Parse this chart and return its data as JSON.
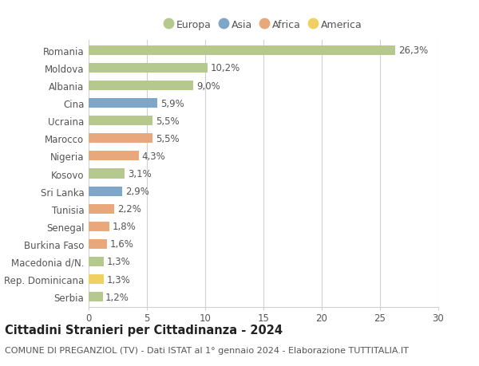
{
  "categories": [
    "Romania",
    "Moldova",
    "Albania",
    "Cina",
    "Ucraina",
    "Marocco",
    "Nigeria",
    "Kosovo",
    "Sri Lanka",
    "Tunisia",
    "Senegal",
    "Burkina Faso",
    "Macedonia d/N.",
    "Rep. Dominicana",
    "Serbia"
  ],
  "values": [
    26.3,
    10.2,
    9.0,
    5.9,
    5.5,
    5.5,
    4.3,
    3.1,
    2.9,
    2.2,
    1.8,
    1.6,
    1.3,
    1.3,
    1.2
  ],
  "labels": [
    "26,3%",
    "10,2%",
    "9,0%",
    "5,9%",
    "5,5%",
    "5,5%",
    "4,3%",
    "3,1%",
    "2,9%",
    "2,2%",
    "1,8%",
    "1,6%",
    "1,3%",
    "1,3%",
    "1,2%"
  ],
  "continents": [
    "Europa",
    "Europa",
    "Europa",
    "Asia",
    "Europa",
    "Africa",
    "Africa",
    "Europa",
    "Asia",
    "Africa",
    "Africa",
    "Africa",
    "Europa",
    "America",
    "Europa"
  ],
  "continent_colors": {
    "Europa": "#b5c98e",
    "Asia": "#7ea6c9",
    "Africa": "#e8a87c",
    "America": "#f0d060"
  },
  "legend_items": [
    "Europa",
    "Asia",
    "Africa",
    "America"
  ],
  "legend_colors": [
    "#b5c98e",
    "#7ea6c9",
    "#e8a87c",
    "#f0d060"
  ],
  "xlim": [
    0,
    30
  ],
  "xticks": [
    0,
    5,
    10,
    15,
    20,
    25,
    30
  ],
  "title": "Cittadini Stranieri per Cittadinanza - 2024",
  "subtitle": "COMUNE DI PREGANZIOL (TV) - Dati ISTAT al 1° gennaio 2024 - Elaborazione TUTTITALIA.IT",
  "background_color": "#ffffff",
  "bar_height": 0.55,
  "grid_color": "#d0d0d0",
  "label_fontsize": 8.5,
  "title_fontsize": 10.5,
  "subtitle_fontsize": 8,
  "tick_fontsize": 8.5,
  "legend_fontsize": 9
}
